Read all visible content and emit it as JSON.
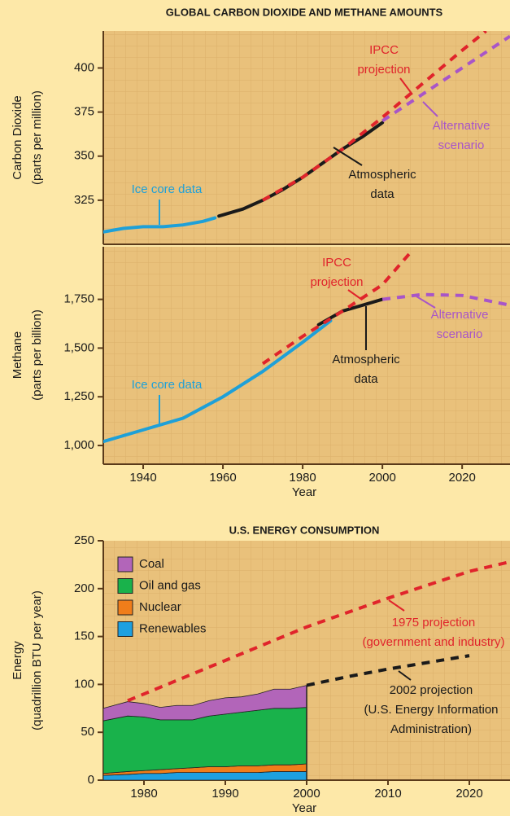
{
  "chart_data": [
    {
      "type": "line",
      "title": "GLOBAL CARBON DIOXIDE AND METHANE AMOUNTS",
      "ylabel": [
        "Carbon Dioxide",
        "(parts per million)"
      ],
      "xlim": [
        1930,
        2032
      ],
      "ylim": [
        300,
        421
      ],
      "yticks": [
        325,
        350,
        375,
        400
      ],
      "series": [
        {
          "label": [
            "Ice core data"
          ],
          "color": "#1ea0d8",
          "dashed": false,
          "x": [
            1930,
            1935,
            1940,
            1945,
            1950,
            1955,
            1958
          ],
          "values": [
            307,
            309,
            310,
            310,
            311,
            313,
            315
          ]
        },
        {
          "label": [
            "Atmospheric",
            "data"
          ],
          "color": "#1a1a1a",
          "dashed": false,
          "x": [
            1959,
            1965,
            1970,
            1975,
            1980,
            1985,
            1990,
            1995,
            2000
          ],
          "values": [
            316,
            320,
            325,
            331,
            338,
            346,
            354,
            361,
            369
          ]
        },
        {
          "label": [
            "IPCC",
            "projection"
          ],
          "color": "#e0242b",
          "dashed": true,
          "x": [
            1970,
            1980,
            1990,
            2000,
            2010,
            2020,
            2026
          ],
          "values": [
            325,
            338,
            354,
            372,
            391,
            410,
            421
          ]
        },
        {
          "label": [
            "Alternative",
            "scenario"
          ],
          "color": "#a855c8",
          "dashed": true,
          "x": [
            2000,
            2010,
            2020,
            2032
          ],
          "values": [
            370,
            385,
            400,
            418
          ]
        }
      ]
    },
    {
      "type": "line",
      "ylabel": [
        "Methane",
        "(parts per billion)"
      ],
      "xlabel": "Year",
      "xlim": [
        1930,
        2032
      ],
      "xticks": [
        1940,
        1960,
        1980,
        2000,
        2020
      ],
      "ylim": [
        904,
        2020
      ],
      "yticks": [
        {
          "value": 1000,
          "label": "1,000"
        },
        {
          "value": 1250,
          "label": "1,250"
        },
        {
          "value": 1500,
          "label": "1,500"
        },
        {
          "value": 1750,
          "label": "1,750"
        }
      ],
      "series": [
        {
          "label": [
            "Ice core data"
          ],
          "color": "#1ea0d8",
          "dashed": false,
          "x": [
            1930,
            1940,
            1950,
            1960,
            1970,
            1980,
            1987
          ],
          "values": [
            1020,
            1080,
            1140,
            1250,
            1380,
            1530,
            1640
          ]
        },
        {
          "label": [
            "Atmospheric",
            "data"
          ],
          "color": "#1a1a1a",
          "dashed": false,
          "x": [
            1984,
            1990,
            1995,
            2000
          ],
          "values": [
            1620,
            1690,
            1720,
            1750
          ]
        },
        {
          "label": [
            "IPCC",
            "projection"
          ],
          "color": "#e0242b",
          "dashed": true,
          "x": [
            1970,
            1980,
            1990,
            2000,
            2007
          ],
          "values": [
            1420,
            1560,
            1690,
            1825,
            1990
          ]
        },
        {
          "label": [
            "Alternative",
            "scenario"
          ],
          "color": "#a855c8",
          "dashed": true,
          "x": [
            2000,
            2010,
            2020,
            2032
          ],
          "values": [
            1750,
            1775,
            1770,
            1720
          ]
        }
      ]
    },
    {
      "type": "area",
      "stacked": true,
      "title": "U.S. ENERGY CONSUMPTION",
      "ylabel": [
        "Energy",
        "(quadrillion BTU per year)"
      ],
      "xlabel": "Year",
      "xlim": [
        1975,
        2025
      ],
      "xticks": [
        1980,
        1990,
        2000,
        2010,
        2020
      ],
      "ylim": [
        0,
        250
      ],
      "yticks": [
        0,
        50,
        100,
        150,
        200,
        250
      ],
      "x": [
        1975,
        1978,
        1980,
        1982,
        1984,
        1986,
        1988,
        1990,
        1992,
        1994,
        1996,
        1998,
        2000
      ],
      "series": [
        {
          "name": "Renewables",
          "color": "#1ea0e0",
          "values": [
            5,
            6,
            7,
            7,
            8,
            8,
            8,
            8,
            8,
            8,
            9,
            9,
            9
          ]
        },
        {
          "name": "Nuclear",
          "color": "#f07d1a",
          "values": [
            2,
            3,
            3,
            4,
            4,
            5,
            6,
            6,
            7,
            7,
            7,
            7,
            8
          ]
        },
        {
          "name": "Oil and gas",
          "color": "#19b24b",
          "values": [
            55,
            58,
            56,
            52,
            51,
            50,
            53,
            55,
            56,
            58,
            59,
            59,
            59
          ]
        },
        {
          "name": "Coal",
          "color": "#b265b9",
          "values": [
            13,
            15,
            14,
            13,
            15,
            15,
            16,
            17,
            16,
            17,
            20,
            20,
            23
          ]
        }
      ],
      "lines": [
        {
          "label": [
            "1975 projection",
            "(government and industry)"
          ],
          "color": "#e0242b",
          "dashed": true,
          "x": [
            1978,
            1990,
            2000,
            2010,
            2020,
            2025
          ],
          "values": [
            83,
            125,
            160,
            190,
            218,
            228
          ]
        },
        {
          "label": [
            "2002 projection",
            "(U.S. Energy Information",
            "Administration)"
          ],
          "color": "#1a1a1a",
          "dashed": true,
          "x": [
            2000,
            2005,
            2010,
            2015,
            2020
          ],
          "values": [
            99,
            108,
            116,
            123,
            130
          ]
        }
      ]
    }
  ]
}
